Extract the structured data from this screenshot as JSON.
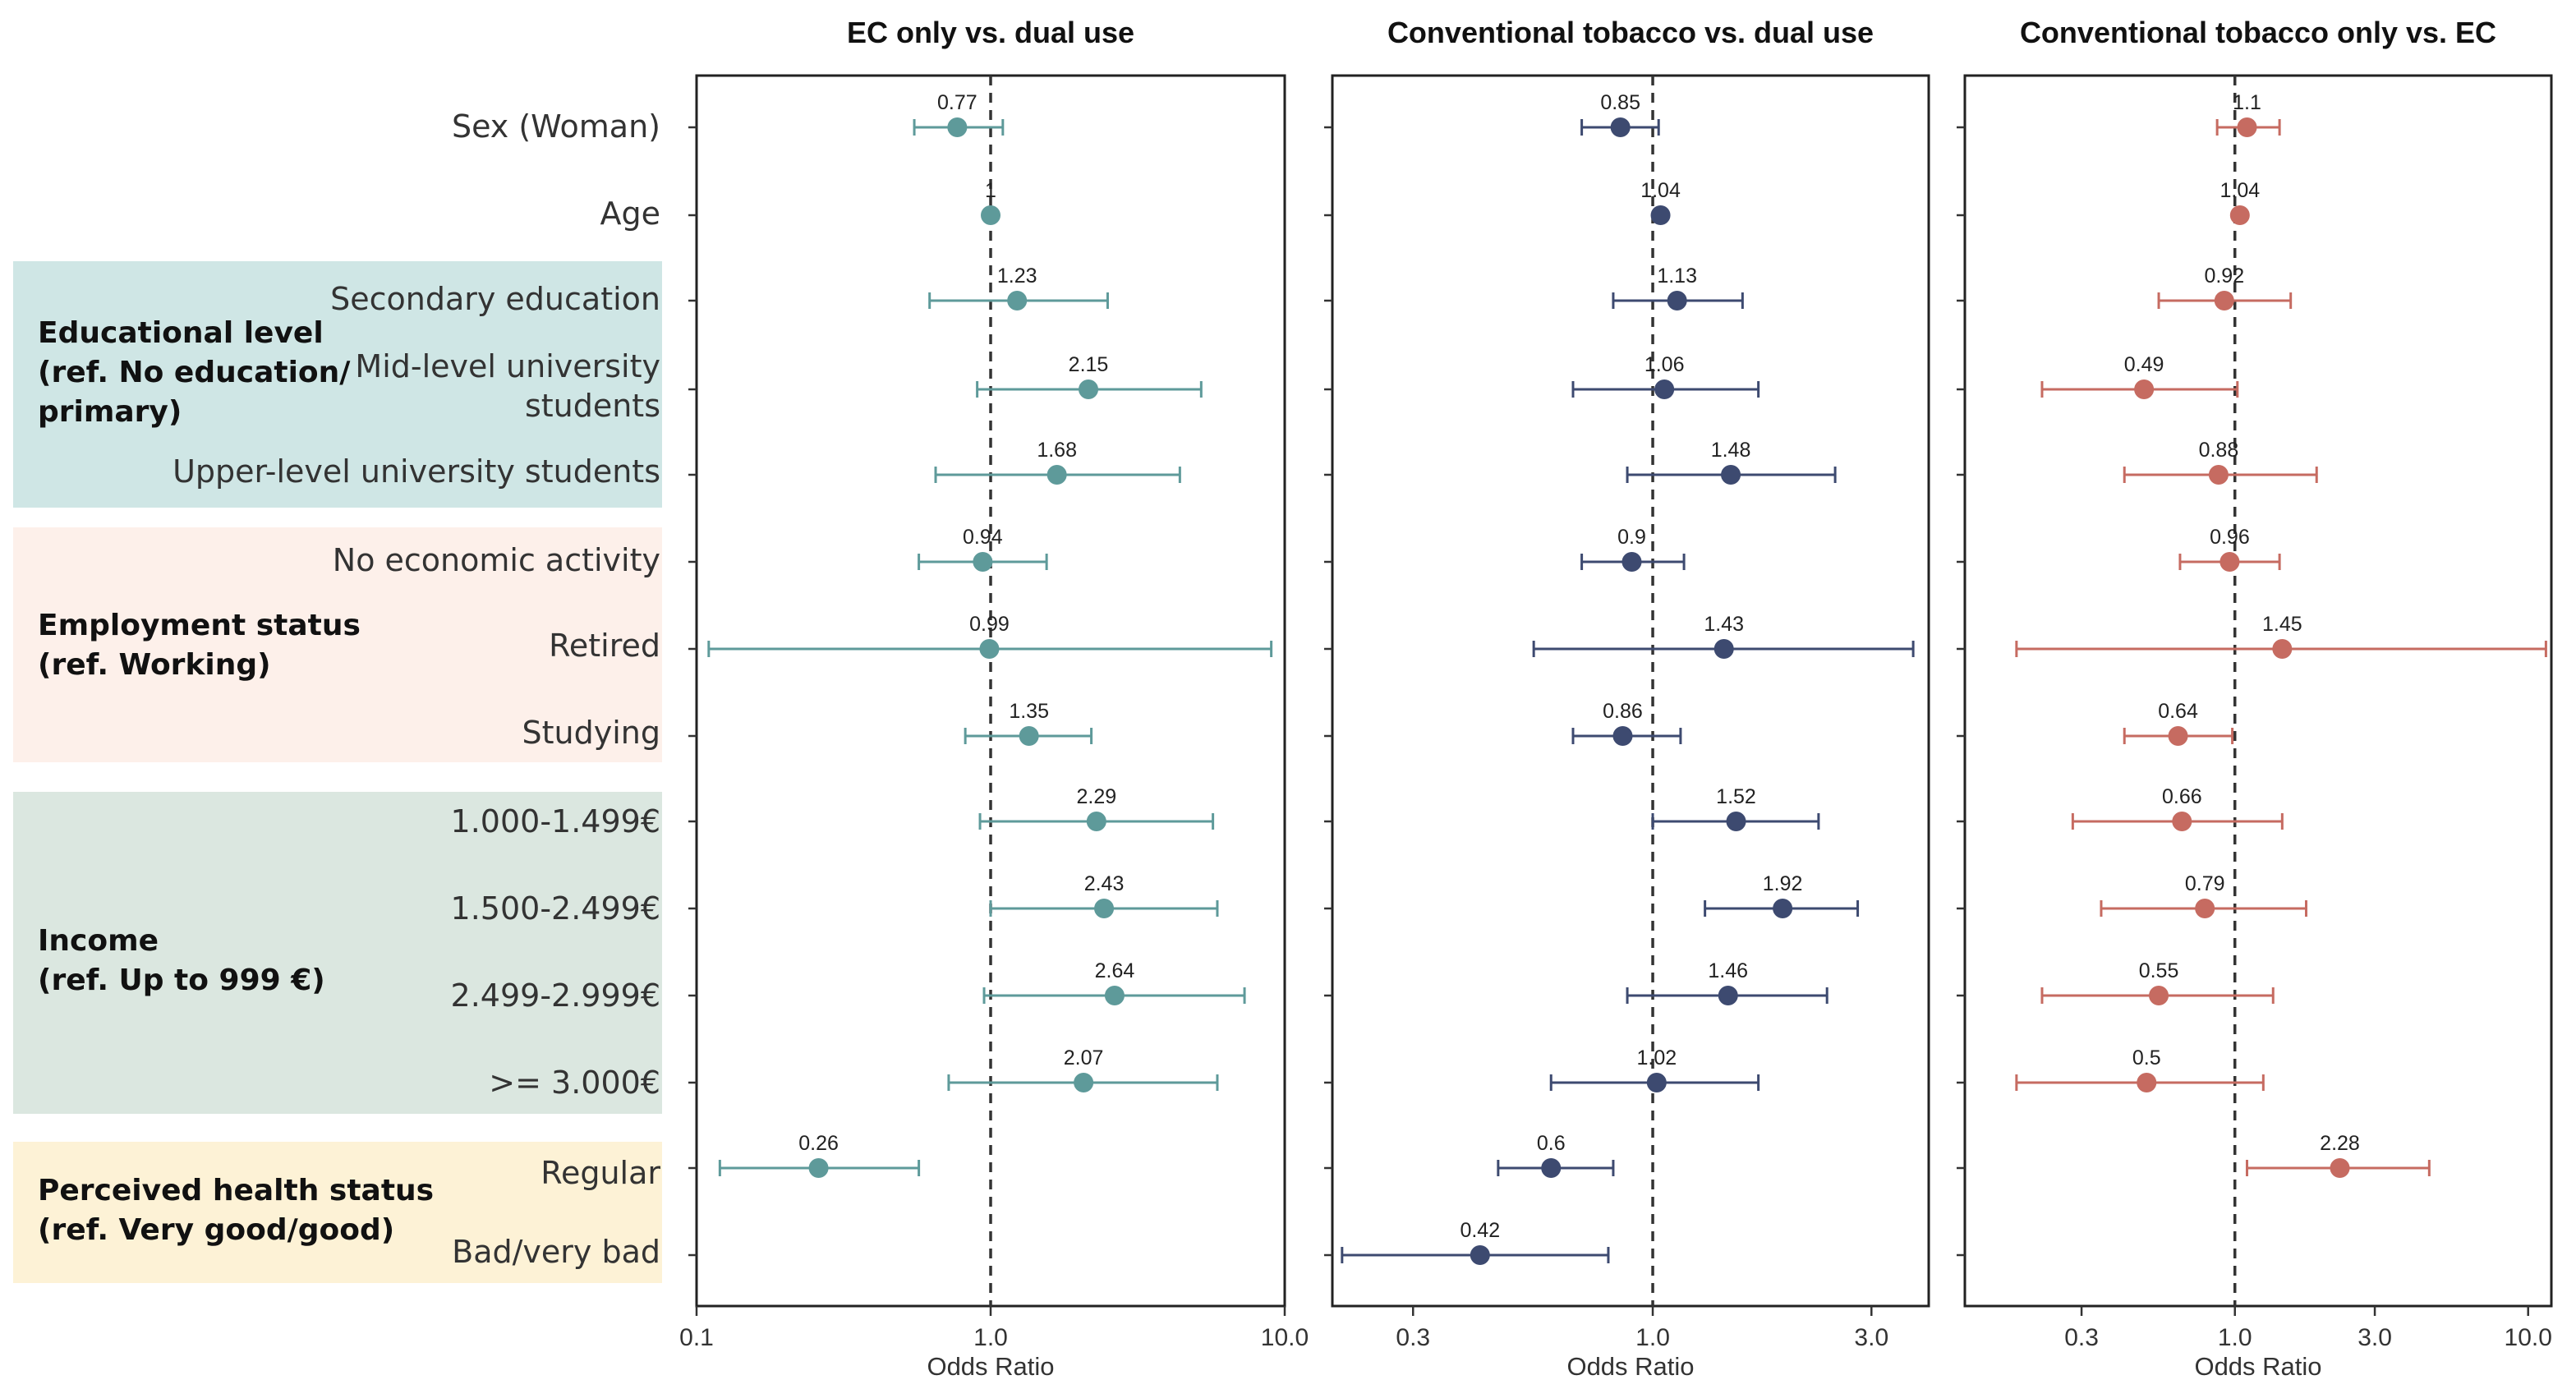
{
  "groups": [
    {
      "key": "education",
      "label": "Educational level\n(ref. No education/\nprimary)",
      "color": "#cfe6e5"
    },
    {
      "key": "employment",
      "label": "Employment status\n(ref. Working)",
      "color": "#fdf0ea"
    },
    {
      "key": "income",
      "label": "Income\n(ref. Up to 999 €)",
      "color": "#dbe7e0"
    },
    {
      "key": "health",
      "label": "Perceived health status\n(ref. Very good/good)",
      "color": "#fdf2d6"
    }
  ],
  "rows": [
    "Sex (Woman)",
    "Age",
    "Secondary education",
    "Mid-level university\nstudents",
    "Upper-level university students",
    "No economic activity",
    "Retired",
    "Studying",
    "1.000-1.499€",
    "1.500-2.499€",
    "2.499-2.999€",
    ">= 3.000€",
    "Regular",
    "Bad/very bad"
  ],
  "chart_data": [
    {
      "type": "forest",
      "title": "EC only vs. dual use",
      "xlabel": "Odds Ratio",
      "xscale": "log",
      "xlim": [
        0.1,
        10.0
      ],
      "ticks": [
        0.1,
        1.0,
        10.0
      ],
      "tick_labels": [
        "0.1",
        "1.0",
        "10.0"
      ],
      "reference_line": 1,
      "color": "#5e9a9a",
      "points": [
        {
          "or": 0.77,
          "label": "0.77",
          "lo": 0.55,
          "hi": 1.1
        },
        {
          "or": 1.0,
          "label": "1",
          "lo": 0.98,
          "hi": 1.03
        },
        {
          "or": 1.23,
          "label": "1.23",
          "lo": 0.62,
          "hi": 2.5
        },
        {
          "or": 2.15,
          "label": "2.15",
          "lo": 0.9,
          "hi": 5.2
        },
        {
          "or": 1.68,
          "label": "1.68",
          "lo": 0.65,
          "hi": 4.4
        },
        {
          "or": 0.94,
          "label": "0.94",
          "lo": 0.57,
          "hi": 1.55
        },
        {
          "or": 0.99,
          "label": "0.99",
          "lo": 0.11,
          "hi": 9.0
        },
        {
          "or": 1.35,
          "label": "1.35",
          "lo": 0.82,
          "hi": 2.2
        },
        {
          "or": 2.29,
          "label": "2.29",
          "lo": 0.92,
          "hi": 5.7
        },
        {
          "or": 2.43,
          "label": "2.43",
          "lo": 1.0,
          "hi": 5.9
        },
        {
          "or": 2.64,
          "label": "2.64",
          "lo": 0.95,
          "hi": 7.3
        },
        {
          "or": 2.07,
          "label": "2.07",
          "lo": 0.72,
          "hi": 5.9
        },
        {
          "or": 0.26,
          "label": "0.26",
          "lo": 0.12,
          "hi": 0.57
        },
        null
      ]
    },
    {
      "type": "forest",
      "title": "Conventional tobacco vs. dual use",
      "xlabel": "Odds Ratio",
      "xscale": "log",
      "xlim": [
        0.2,
        4.0
      ],
      "ticks": [
        0.3,
        1.0,
        3.0
      ],
      "tick_labels": [
        "0.3",
        "1.0",
        "3.0"
      ],
      "reference_line": 1,
      "color": "#3d4a70",
      "points": [
        {
          "or": 0.85,
          "label": "0.85",
          "lo": 0.7,
          "hi": 1.03
        },
        {
          "or": 1.04,
          "label": "1.04",
          "lo": 1.02,
          "hi": 1.06
        },
        {
          "or": 1.13,
          "label": "1.13",
          "lo": 0.82,
          "hi": 1.57
        },
        {
          "or": 1.06,
          "label": "1.06",
          "lo": 0.67,
          "hi": 1.7
        },
        {
          "or": 1.48,
          "label": "1.48",
          "lo": 0.88,
          "hi": 2.5
        },
        {
          "or": 0.9,
          "label": "0.9",
          "lo": 0.7,
          "hi": 1.17
        },
        {
          "or": 1.43,
          "label": "1.43",
          "lo": 0.55,
          "hi": 3.7
        },
        {
          "or": 0.86,
          "label": "0.86",
          "lo": 0.67,
          "hi": 1.15
        },
        {
          "or": 1.52,
          "label": "1.52",
          "lo": 1.0,
          "hi": 2.3
        },
        {
          "or": 1.92,
          "label": "1.92",
          "lo": 1.3,
          "hi": 2.8
        },
        {
          "or": 1.46,
          "label": "1.46",
          "lo": 0.88,
          "hi": 2.4
        },
        {
          "or": 1.02,
          "label": "1.02",
          "lo": 0.6,
          "hi": 1.7
        },
        {
          "or": 0.6,
          "label": "0.6",
          "lo": 0.46,
          "hi": 0.82
        },
        {
          "or": 0.42,
          "label": "0.42",
          "lo": 0.21,
          "hi": 0.8
        }
      ]
    },
    {
      "type": "forest",
      "title": "Conventional tobacco only vs. EC",
      "xlabel": "Odds Ratio",
      "xscale": "log",
      "xlim": [
        0.12,
        12.0
      ],
      "ticks": [
        0.3,
        1.0,
        3.0,
        10.0
      ],
      "tick_labels": [
        "0.3",
        "1.0",
        "3.0",
        "10.0"
      ],
      "reference_line": 1,
      "color": "#c66b61",
      "points": [
        {
          "or": 1.1,
          "label": "1.1",
          "lo": 0.87,
          "hi": 1.42
        },
        {
          "or": 1.04,
          "label": "1.04",
          "lo": 1.02,
          "hi": 1.06
        },
        {
          "or": 0.92,
          "label": "0.92",
          "lo": 0.55,
          "hi": 1.55
        },
        {
          "or": 0.49,
          "label": "0.49",
          "lo": 0.22,
          "hi": 1.02
        },
        {
          "or": 0.88,
          "label": "0.88",
          "lo": 0.42,
          "hi": 1.9
        },
        {
          "or": 0.96,
          "label": "0.96",
          "lo": 0.65,
          "hi": 1.42
        },
        {
          "or": 1.45,
          "label": "1.45",
          "lo": 0.18,
          "hi": 11.5
        },
        {
          "or": 0.64,
          "label": "0.64",
          "lo": 0.42,
          "hi": 0.98
        },
        {
          "or": 0.66,
          "label": "0.66",
          "lo": 0.28,
          "hi": 1.45
        },
        {
          "or": 0.79,
          "label": "0.79",
          "lo": 0.35,
          "hi": 1.75
        },
        {
          "or": 0.55,
          "label": "0.55",
          "lo": 0.22,
          "hi": 1.35
        },
        {
          "or": 0.5,
          "label": "0.5",
          "lo": 0.18,
          "hi": 1.25
        },
        {
          "or": 2.28,
          "label": "2.28",
          "lo": 1.1,
          "hi": 4.6
        },
        null
      ]
    }
  ]
}
